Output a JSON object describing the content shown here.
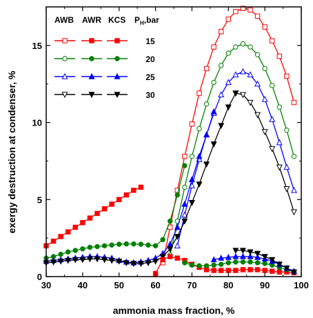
{
  "chart_data": {
    "type": "line",
    "title": "",
    "xlabel": "ammonia mass fraction, %",
    "ylabel": "exergy destruction at condenser, %",
    "xlim": [
      30,
      100
    ],
    "ylim": [
      0,
      17.5
    ],
    "xticks": [
      30,
      40,
      50,
      60,
      70,
      80,
      90,
      100
    ],
    "yticks": [
      0,
      5,
      10,
      15
    ],
    "grid": false,
    "legend": {
      "placement": "top-left",
      "headers": [
        "AWB",
        "AWR",
        "KCS",
        "P",
        "H",
        ",bar"
      ],
      "marker_styles": {
        "AWB": "open",
        "AWR": "filled",
        "KCS": "filled"
      },
      "rows": [
        {
          "pressure": "15",
          "color": "#ff0000",
          "marker": "square"
        },
        {
          "pressure": "20",
          "color": "#008000",
          "marker": "circle"
        },
        {
          "pressure": "25",
          "color": "#0000ff",
          "marker": "triangle"
        },
        {
          "pressure": "30",
          "color": "#000000",
          "marker": "triangle-down"
        }
      ]
    },
    "series": [
      {
        "group": "AWB",
        "pressure": "15",
        "color": "#ff0000",
        "marker": "square",
        "fill": "open",
        "x": [
          62,
          64,
          66,
          68,
          70,
          72,
          74,
          76,
          78,
          80,
          82,
          84,
          86,
          88,
          90,
          92,
          94,
          96,
          98
        ],
        "y": [
          0.9,
          3.2,
          5.6,
          7.8,
          9.9,
          11.9,
          13.5,
          14.9,
          15.9,
          16.7,
          17.2,
          17.4,
          17.3,
          16.9,
          16.2,
          15.3,
          14.3,
          13.0,
          11.3
        ]
      },
      {
        "group": "AWB",
        "pressure": "20",
        "color": "#008000",
        "marker": "circle",
        "fill": "open",
        "x": [
          64,
          66,
          68,
          70,
          72,
          74,
          76,
          78,
          80,
          82,
          84,
          86,
          88,
          90,
          92,
          94,
          96,
          98
        ],
        "y": [
          1.4,
          3.6,
          5.8,
          7.8,
          9.6,
          11.2,
          12.6,
          13.7,
          14.5,
          14.9,
          15.1,
          14.9,
          14.4,
          13.5,
          12.4,
          11.0,
          9.5,
          7.8
        ]
      },
      {
        "group": "AWB",
        "pressure": "25",
        "color": "#0000ff",
        "marker": "triangle",
        "fill": "open",
        "x": [
          66,
          68,
          70,
          72,
          74,
          76,
          78,
          80,
          82,
          84,
          86,
          88,
          90,
          92,
          94,
          96,
          98
        ],
        "y": [
          2.0,
          4.0,
          5.9,
          7.6,
          9.2,
          10.6,
          11.8,
          12.6,
          13.1,
          13.3,
          13.1,
          12.5,
          11.5,
          10.2,
          8.7,
          7.1,
          5.6
        ]
      },
      {
        "group": "AWB",
        "pressure": "30",
        "color": "#000000",
        "marker": "triangle-down",
        "fill": "open",
        "x": [
          82,
          84,
          86,
          88,
          90,
          92,
          94,
          96,
          98
        ],
        "y": [
          11.9,
          11.8,
          11.3,
          10.5,
          9.4,
          8.3,
          7.1,
          5.7,
          4.2
        ]
      },
      {
        "group": "AWR",
        "pressure": "15",
        "color": "#ff0000",
        "marker": "square",
        "fill": "filled",
        "x": [
          30,
          32,
          34,
          36,
          38,
          40,
          42,
          44,
          46,
          48,
          50,
          52,
          54,
          56
        ],
        "y": [
          2.0,
          2.3,
          2.6,
          2.9,
          3.2,
          3.5,
          3.8,
          4.1,
          4.4,
          4.7,
          5.0,
          5.3,
          5.6,
          5.8
        ]
      },
      {
        "group": "AWR",
        "pressure": "20",
        "color": "#008000",
        "marker": "circle",
        "fill": "filled",
        "x": [
          30,
          32,
          34,
          36,
          38,
          40,
          42,
          44,
          46,
          48,
          50,
          52,
          54,
          56,
          58,
          60,
          62,
          64,
          66,
          68
        ],
        "y": [
          1.2,
          1.3,
          1.45,
          1.6,
          1.7,
          1.8,
          1.9,
          1.95,
          2.0,
          2.05,
          2.1,
          2.12,
          2.12,
          2.1,
          2.05,
          2.0,
          2.4,
          3.6,
          5.3,
          7.2
        ]
      },
      {
        "group": "AWR",
        "pressure": "25",
        "color": "#0000ff",
        "marker": "triangle",
        "fill": "filled",
        "x": [
          30,
          32,
          34,
          36,
          38,
          40,
          42,
          44,
          46,
          48,
          50,
          52,
          54,
          56,
          58,
          60,
          62,
          64,
          66,
          68,
          70,
          72,
          74,
          76
        ],
        "y": [
          1.0,
          1.05,
          1.1,
          1.15,
          1.2,
          1.25,
          1.3,
          1.3,
          1.25,
          1.2,
          1.05,
          0.95,
          0.9,
          0.95,
          1.05,
          1.2,
          1.5,
          2.1,
          3.2,
          4.7,
          6.3,
          7.8,
          9.2,
          10.7
        ]
      },
      {
        "group": "AWR",
        "pressure": "30",
        "color": "#000000",
        "marker": "triangle-down",
        "fill": "filled",
        "x": [
          30,
          32,
          34,
          36,
          38,
          40,
          42,
          44,
          46,
          48,
          50,
          52,
          54,
          56,
          58,
          60,
          62,
          64,
          66,
          68,
          70,
          72,
          74,
          76,
          78,
          80,
          82
        ],
        "y": [
          0.9,
          0.95,
          1.0,
          1.05,
          1.1,
          1.1,
          1.15,
          1.15,
          1.1,
          1.05,
          1.0,
          0.9,
          0.85,
          0.85,
          0.9,
          1.0,
          1.3,
          1.8,
          2.6,
          3.6,
          4.8,
          6.0,
          7.3,
          8.6,
          9.8,
          11.0,
          11.9
        ]
      },
      {
        "group": "KCS",
        "pressure": "15",
        "color": "#ff0000",
        "marker": "square",
        "fill": "filled",
        "x": [
          60,
          62,
          64,
          66,
          68,
          70,
          72,
          74,
          76,
          78,
          80,
          82,
          84,
          86,
          88,
          90,
          92,
          94,
          96,
          98
        ],
        "y": [
          0.2,
          1.1,
          1.3,
          1.2,
          1.05,
          0.8,
          0.6,
          0.45,
          0.4,
          0.4,
          0.4,
          0.4,
          0.45,
          0.45,
          0.45,
          0.4,
          0.35,
          0.3,
          0.3,
          0.25
        ]
      },
      {
        "group": "KCS",
        "pressure": "20",
        "color": "#008000",
        "marker": "circle",
        "fill": "filled",
        "x": [
          68,
          70,
          72,
          74,
          76,
          78,
          80,
          82,
          84,
          86,
          88,
          90,
          92,
          94,
          96,
          98
        ],
        "y": [
          0.9,
          0.75,
          0.7,
          0.7,
          0.75,
          0.8,
          0.9,
          0.95,
          0.95,
          0.95,
          0.9,
          0.85,
          0.75,
          0.6,
          0.45,
          0.3
        ]
      },
      {
        "group": "KCS",
        "pressure": "25",
        "color": "#0000ff",
        "marker": "triangle",
        "fill": "filled",
        "x": [
          76,
          78,
          80,
          82,
          84,
          86,
          88,
          90,
          92,
          94,
          96,
          98
        ],
        "y": [
          1.1,
          1.2,
          1.25,
          1.3,
          1.3,
          1.3,
          1.25,
          1.15,
          1.0,
          0.8,
          0.55,
          0.35
        ]
      },
      {
        "group": "KCS",
        "pressure": "30",
        "color": "#000000",
        "marker": "triangle-down",
        "fill": "filled",
        "x": [
          82,
          84,
          86,
          88,
          90,
          92,
          94,
          96,
          98
        ],
        "y": [
          1.7,
          1.7,
          1.6,
          1.5,
          1.3,
          1.1,
          0.8,
          0.55,
          0.3
        ]
      }
    ]
  }
}
